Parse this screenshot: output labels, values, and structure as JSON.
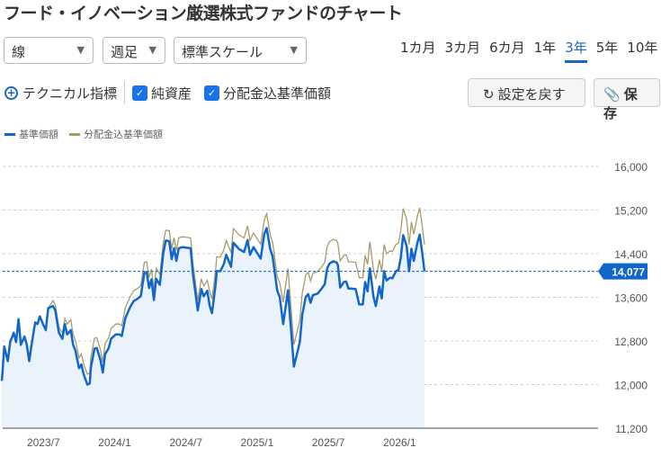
{
  "title": "フード・イノベーション厳選株式ファンドのチャート",
  "selects": {
    "type": "線",
    "interval": "週足",
    "scale": "標準スケール"
  },
  "periods": [
    "1カ月",
    "3カ月",
    "6カ月",
    "1年",
    "3年",
    "5年",
    "10年"
  ],
  "active_period": "3年",
  "technical": "テクニカル指標",
  "checkboxes": {
    "net_assets": "純資産",
    "dist_nav": "分配金込基準価額"
  },
  "buttons": {
    "reset": "設定を戻す",
    "save": "保存"
  },
  "colors": {
    "nav": "#1166cc",
    "dist": "#a89a6a",
    "fill": "#eaf2fb"
  },
  "chart_data": {
    "type": "line",
    "legend": [
      "基準価額",
      "分配金込基準価額"
    ],
    "x_unit": "months since 2023/7",
    "xticks": [
      {
        "x": 0,
        "label": "2023/7"
      },
      {
        "x": 6,
        "label": "2024/1"
      },
      {
        "x": 12,
        "label": "2024/7"
      },
      {
        "x": 18,
        "label": "2025/1"
      },
      {
        "x": 24,
        "label": "2025/7"
      },
      {
        "x": 30,
        "label": "2026/1"
      }
    ],
    "yticks": [
      16000,
      15200,
      14400,
      13600,
      12800,
      12000,
      11200
    ],
    "ytick_labels": [
      "16,000",
      "15,200",
      "14,400",
      "13,600",
      "12,800",
      "12,000",
      "11,200"
    ],
    "ylim": [
      11200,
      16000
    ],
    "xlim": [
      -3.5,
      32.1
    ],
    "current_value": 14077,
    "current_label": "14,077",
    "x": [
      -3.5,
      -3.3,
      -3.0,
      -2.8,
      -2.5,
      -2.3,
      -2.1,
      -1.9,
      -1.6,
      -1.4,
      -1.2,
      -1.0,
      -0.7,
      -0.5,
      -0.3,
      0,
      0.2,
      0.4,
      0.8,
      1.0,
      1.3,
      1.6,
      1.8,
      2.0,
      2.3,
      2.5,
      2.7,
      3.0,
      3.2,
      3.4,
      3.7,
      3.9,
      4.0,
      4.3,
      4.5,
      4.8,
      5.0,
      5.2,
      5.5,
      5.7,
      6.1,
      6.4,
      6.6,
      6.9,
      7.3,
      7.6,
      7.9,
      8.2,
      8.5,
      8.7,
      8.9,
      9.1,
      9.3,
      9.5,
      9.8,
      10.1,
      10.3,
      10.6,
      10.8,
      11.0,
      11.2,
      11.4,
      11.7,
      12.4,
      12.6,
      13.0,
      13.3,
      13.5,
      13.8,
      14.0,
      14.2,
      14.5,
      14.6,
      14.9,
      15.2,
      15.4,
      15.8,
      16.0,
      16.5,
      16.9,
      17.2,
      17.4,
      17.7,
      18.3,
      18.6,
      18.8,
      19.1,
      19.3,
      19.7,
      19.9,
      20.2,
      20.6,
      21.1,
      21.6,
      21.8,
      22.1,
      22.3,
      22.5,
      22.7,
      23.1,
      23.4,
      23.7,
      23.9,
      24.1,
      24.4,
      24.7,
      24.8,
      25.0,
      25.3,
      25.5,
      25.7,
      26.0,
      26.3,
      26.6,
      26.9,
      27.1,
      27.3,
      27.5,
      27.8,
      28.0,
      28.3,
      28.5,
      28.7,
      28.9,
      29.2,
      29.4,
      29.7,
      29.9,
      30.1,
      30.3,
      30.6,
      30.8,
      31.0,
      31.2,
      31.5,
      31.7,
      31.9,
      32.1
    ],
    "series": [
      {
        "name": "基準価額",
        "values": [
          12070,
          12700,
          12430,
          12780,
          12950,
          12780,
          13200,
          12730,
          12880,
          12730,
          12430,
          12730,
          13140,
          13110,
          13250,
          13090,
          13000,
          13400,
          13440,
          13360,
          12950,
          12840,
          13110,
          12920,
          13000,
          12730,
          12620,
          12300,
          12370,
          12180,
          12000,
          12020,
          12320,
          12660,
          12670,
          12450,
          12220,
          12560,
          12670,
          12840,
          12920,
          12920,
          12890,
          13220,
          13420,
          13530,
          13570,
          13620,
          14050,
          14060,
          13770,
          13930,
          13550,
          13940,
          13830,
          14410,
          14640,
          14630,
          14300,
          14500,
          14270,
          14500,
          14520,
          14500,
          14020,
          13360,
          13750,
          13620,
          13720,
          13450,
          13310,
          13830,
          14080,
          14080,
          14210,
          14380,
          14160,
          14600,
          14480,
          14430,
          14650,
          14380,
          14520,
          14310,
          14760,
          14870,
          14490,
          14350,
          13720,
          13610,
          13110,
          13730,
          12330,
          12780,
          13280,
          13610,
          13660,
          13500,
          13640,
          13670,
          13750,
          13840,
          14130,
          14220,
          14260,
          14240,
          14190,
          13780,
          13880,
          13890,
          13760,
          13760,
          13750,
          13470,
          13470,
          13880,
          13710,
          14130,
          13610,
          13440,
          13800,
          13580,
          14080,
          13910,
          13960,
          13950,
          14080,
          14100,
          14320,
          14740,
          14540,
          14080,
          14490,
          14270,
          14600,
          14750,
          14430,
          14077
        ]
      },
      {
        "name": "分配金込基準価額",
        "values": [
          12070,
          12700,
          12430,
          12780,
          12950,
          12780,
          13200,
          12730,
          12880,
          12730,
          12430,
          12730,
          13140,
          13110,
          13250,
          13090,
          13000,
          13400,
          13540,
          13460,
          13050,
          12940,
          13210,
          13110,
          13190,
          12920,
          12810,
          12490,
          12560,
          12370,
          12190,
          12210,
          12510,
          12850,
          12860,
          12640,
          12410,
          12750,
          12860,
          13030,
          13110,
          13110,
          13080,
          13410,
          13610,
          13720,
          13760,
          13810,
          14240,
          14250,
          13960,
          14120,
          13740,
          14130,
          14020,
          14600,
          14830,
          14820,
          14490,
          14690,
          14460,
          14690,
          14710,
          14690,
          14210,
          13550,
          13940,
          13810,
          13910,
          13710,
          13570,
          14090,
          14340,
          14340,
          14470,
          14640,
          14420,
          14860,
          14740,
          14690,
          14910,
          14640,
          14780,
          14570,
          15020,
          15130,
          14750,
          14610,
          13980,
          13870,
          13510,
          14130,
          12730,
          13180,
          13680,
          14010,
          14060,
          13900,
          14040,
          14070,
          14150,
          14240,
          14530,
          14620,
          14660,
          14640,
          14590,
          14270,
          14370,
          14380,
          14250,
          14250,
          14240,
          13960,
          13960,
          14370,
          14200,
          14620,
          14100,
          13930,
          14290,
          14070,
          14570,
          14400,
          14450,
          14440,
          14570,
          14590,
          14810,
          15230,
          15030,
          14570,
          14980,
          14760,
          15090,
          15240,
          14920,
          14567
        ]
      }
    ]
  }
}
